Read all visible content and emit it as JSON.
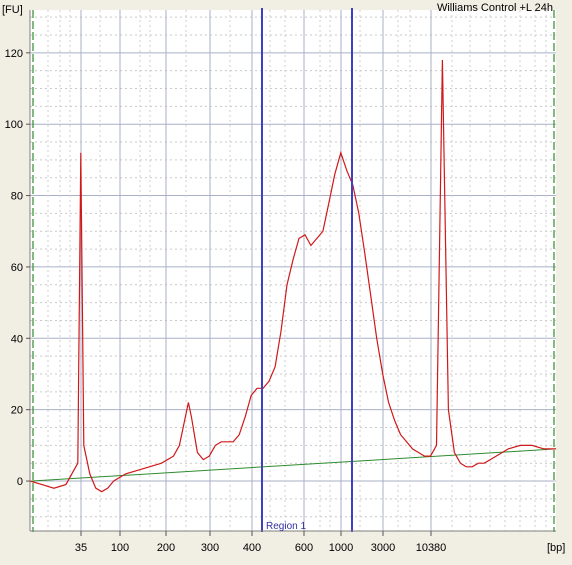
{
  "chart_data": {
    "type": "line",
    "title": "Williams Control +L 24h",
    "xlabel": "[bp]",
    "ylabel": "[FU]",
    "ylim": [
      -14,
      132
    ],
    "y_ticks": [
      0,
      20,
      40,
      60,
      80,
      100,
      120
    ],
    "x_ticks": [
      "35",
      "100",
      "200",
      "300",
      "400",
      "600",
      "1000",
      "3000",
      "10380"
    ],
    "grid": true,
    "x_axis_values_note": "",
    "colors": {
      "trace": "#d01818",
      "baseline": "#2e8b2e",
      "region": "#3f3fc0",
      "marker": "#2e8b2e",
      "background": "#f1efe4",
      "plot_background": "#ffffff"
    },
    "region": {
      "label": "Region 1",
      "start_bp": "400",
      "end_bp": "1000"
    },
    "baseline": {
      "start_fu": 0,
      "end_fu": 9
    },
    "series": [
      {
        "values_by_tick": {
          "35": 92,
          "100": -1,
          "200": 6,
          "300": 8,
          "400": 11,
          "600": 55,
          "1000": 92,
          "3000": 10,
          "10380": 118
        },
        "points": [
          [
            0,
            0
          ],
          [
            2,
            -1
          ],
          [
            4,
            -2
          ],
          [
            6,
            -1
          ],
          [
            8,
            5
          ],
          [
            8.5,
            92
          ],
          [
            9,
            10
          ],
          [
            10,
            2
          ],
          [
            11,
            -2
          ],
          [
            12,
            -3
          ],
          [
            13,
            -2
          ],
          [
            14,
            0
          ],
          [
            16,
            2
          ],
          [
            18,
            3
          ],
          [
            20,
            4
          ],
          [
            22,
            5
          ],
          [
            24,
            7
          ],
          [
            25,
            10
          ],
          [
            26,
            18
          ],
          [
            26.5,
            22
          ],
          [
            27,
            18
          ],
          [
            28,
            8
          ],
          [
            29,
            6
          ],
          [
            30,
            7
          ],
          [
            31,
            10
          ],
          [
            32,
            11
          ],
          [
            33,
            11
          ],
          [
            34,
            11
          ],
          [
            35,
            13
          ],
          [
            36,
            18
          ],
          [
            37,
            24
          ],
          [
            38,
            26
          ],
          [
            39,
            26
          ],
          [
            40,
            28
          ],
          [
            41,
            32
          ],
          [
            42,
            42
          ],
          [
            43,
            55
          ],
          [
            44,
            62
          ],
          [
            45,
            68
          ],
          [
            46,
            69
          ],
          [
            47,
            66
          ],
          [
            48,
            68
          ],
          [
            49,
            70
          ],
          [
            50,
            78
          ],
          [
            51,
            86
          ],
          [
            52,
            92
          ],
          [
            53,
            87
          ],
          [
            54,
            83
          ],
          [
            55,
            75
          ],
          [
            56,
            64
          ],
          [
            57,
            52
          ],
          [
            58,
            40
          ],
          [
            59,
            30
          ],
          [
            60,
            22
          ],
          [
            61,
            17
          ],
          [
            62,
            13
          ],
          [
            63,
            11
          ],
          [
            64,
            9
          ],
          [
            65,
            8
          ],
          [
            66,
            7
          ],
          [
            67,
            7
          ],
          [
            68,
            10
          ],
          [
            69,
            118
          ],
          [
            70,
            20
          ],
          [
            71,
            8
          ],
          [
            72,
            5
          ],
          [
            73,
            4
          ],
          [
            74,
            4
          ],
          [
            75,
            5
          ],
          [
            76,
            5
          ],
          [
            78,
            7
          ],
          [
            80,
            9
          ],
          [
            82,
            10
          ],
          [
            84,
            10
          ],
          [
            86,
            9
          ],
          [
            88,
            9
          ]
        ]
      }
    ]
  }
}
